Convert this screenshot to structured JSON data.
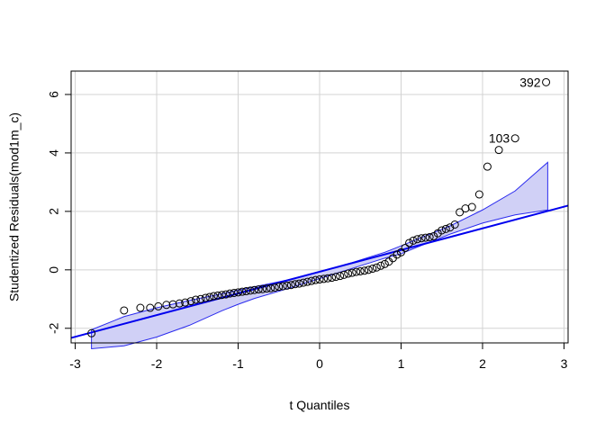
{
  "chart_data": {
    "type": "scatter",
    "title": "",
    "xlabel": "t Quantiles",
    "ylabel": "Studentized Residuals(mod1m_c)",
    "xlim": [
      -3.05,
      3.05
    ],
    "ylim": [
      -2.5,
      6.8
    ],
    "xticks": [
      -3,
      -2,
      -1,
      0,
      1,
      2,
      3
    ],
    "yticks": [
      -2,
      0,
      2,
      4,
      6
    ],
    "grid": true,
    "colors": {
      "line": "#0000ee",
      "band_fill": "#d0d0f6",
      "band_edge": "#2a2aee",
      "points": "#000000",
      "grid": "#d3d3d3"
    },
    "reference_line": {
      "slope": 0.742,
      "intercept": -0.065
    },
    "envelope": {
      "x": [
        -2.8,
        -2.4,
        -2.0,
        -1.6,
        -1.2,
        -1.0,
        -0.8,
        -0.4,
        0.0,
        0.4,
        0.8,
        1.0,
        1.2,
        1.6,
        2.0,
        2.4,
        2.8
      ],
      "upper": [
        -2.05,
        -1.6,
        -1.3,
        -1.05,
        -0.82,
        -0.7,
        -0.58,
        -0.35,
        -0.06,
        0.25,
        0.6,
        0.82,
        1.05,
        1.5,
        2.05,
        2.7,
        3.68
      ],
      "lower": [
        -2.7,
        -2.6,
        -2.3,
        -1.9,
        -1.4,
        -1.18,
        -0.98,
        -0.65,
        -0.3,
        0.05,
        0.4,
        0.55,
        0.78,
        1.22,
        1.6,
        1.88,
        2.05
      ]
    },
    "points": [
      [
        -2.8,
        -2.17
      ],
      [
        -2.4,
        -1.39
      ],
      [
        -2.2,
        -1.3
      ],
      [
        -2.08,
        -1.3
      ],
      [
        -1.98,
        -1.25
      ],
      [
        -1.88,
        -1.2
      ],
      [
        -1.8,
        -1.18
      ],
      [
        -1.72,
        -1.15
      ],
      [
        -1.65,
        -1.12
      ],
      [
        -1.58,
        -1.07
      ],
      [
        -1.52,
        -1.02
      ],
      [
        -1.46,
        -1.0
      ],
      [
        -1.4,
        -0.96
      ],
      [
        -1.35,
        -0.93
      ],
      [
        -1.3,
        -0.9
      ],
      [
        -1.25,
        -0.88
      ],
      [
        -1.2,
        -0.86
      ],
      [
        -1.15,
        -0.84
      ],
      [
        -1.1,
        -0.81
      ],
      [
        -1.05,
        -0.79
      ],
      [
        -1.0,
        -0.77
      ],
      [
        -0.95,
        -0.75
      ],
      [
        -0.9,
        -0.73
      ],
      [
        -0.85,
        -0.71
      ],
      [
        -0.8,
        -0.69
      ],
      [
        -0.75,
        -0.67
      ],
      [
        -0.7,
        -0.66
      ],
      [
        -0.65,
        -0.64
      ],
      [
        -0.6,
        -0.63
      ],
      [
        -0.55,
        -0.61
      ],
      [
        -0.5,
        -0.58
      ],
      [
        -0.45,
        -0.56
      ],
      [
        -0.4,
        -0.54
      ],
      [
        -0.35,
        -0.52
      ],
      [
        -0.3,
        -0.49
      ],
      [
        -0.25,
        -0.47
      ],
      [
        -0.2,
        -0.44
      ],
      [
        -0.15,
        -0.41
      ],
      [
        -0.1,
        -0.38
      ],
      [
        -0.05,
        -0.35
      ],
      [
        0.0,
        -0.33
      ],
      [
        0.05,
        -0.31
      ],
      [
        0.1,
        -0.29
      ],
      [
        0.15,
        -0.27
      ],
      [
        0.2,
        -0.24
      ],
      [
        0.25,
        -0.21
      ],
      [
        0.3,
        -0.17
      ],
      [
        0.35,
        -0.13
      ],
      [
        0.4,
        -0.1
      ],
      [
        0.45,
        -0.07
      ],
      [
        0.5,
        -0.05
      ],
      [
        0.55,
        -0.03
      ],
      [
        0.6,
        0.0
      ],
      [
        0.65,
        0.04
      ],
      [
        0.7,
        0.08
      ],
      [
        0.75,
        0.14
      ],
      [
        0.8,
        0.2
      ],
      [
        0.85,
        0.28
      ],
      [
        0.9,
        0.4
      ],
      [
        0.95,
        0.52
      ],
      [
        1.0,
        0.6
      ],
      [
        1.05,
        0.75
      ],
      [
        1.1,
        0.92
      ],
      [
        1.15,
        1.0
      ],
      [
        1.2,
        1.05
      ],
      [
        1.25,
        1.08
      ],
      [
        1.3,
        1.1
      ],
      [
        1.35,
        1.12
      ],
      [
        1.4,
        1.15
      ],
      [
        1.45,
        1.25
      ],
      [
        1.5,
        1.35
      ],
      [
        1.55,
        1.4
      ],
      [
        1.6,
        1.45
      ],
      [
        1.66,
        1.55
      ],
      [
        1.72,
        1.97
      ],
      [
        1.79,
        2.1
      ],
      [
        1.87,
        2.15
      ],
      [
        1.96,
        2.58
      ],
      [
        2.06,
        3.53
      ],
      [
        2.2,
        4.1
      ],
      [
        2.4,
        4.5
      ],
      [
        2.78,
        6.42
      ]
    ],
    "point_labels": [
      {
        "text": "103",
        "x": 2.4,
        "y": 4.5
      },
      {
        "text": "392",
        "x": 2.78,
        "y": 6.42
      }
    ]
  }
}
